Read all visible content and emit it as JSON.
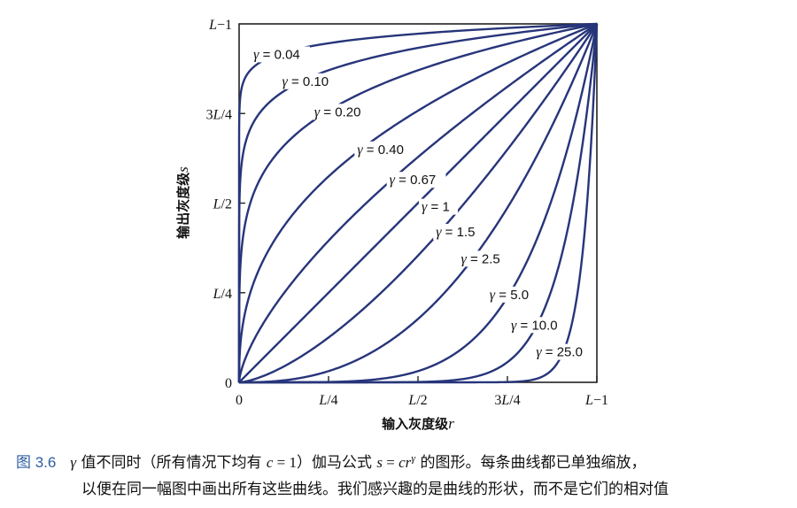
{
  "chart_data": {
    "type": "line",
    "function": "s = r^γ",
    "xlabel": "输入灰度级",
    "xlabel_var": "r",
    "ylabel": "输出灰度级",
    "ylabel_var": "s",
    "xlim": [
      0,
      1
    ],
    "ylim": [
      0,
      1
    ],
    "grid": false,
    "x_ticks": [
      {
        "value": 0,
        "label": "0"
      },
      {
        "value": 0.25,
        "label": "L/4"
      },
      {
        "value": 0.5,
        "label": "L/2"
      },
      {
        "value": 0.75,
        "label": "3L/4"
      },
      {
        "value": 1,
        "label": "L−1"
      }
    ],
    "y_ticks": [
      {
        "value": 0,
        "label": "0"
      },
      {
        "value": 0.25,
        "label": "L/4"
      },
      {
        "value": 0.5,
        "label": "L/2"
      },
      {
        "value": 0.75,
        "label": "3L/4"
      },
      {
        "value": 1,
        "label": "L−1"
      }
    ],
    "series": [
      {
        "gamma": 0.04,
        "label": "γ = 0.04"
      },
      {
        "gamma": 0.1,
        "label": "γ = 0.10"
      },
      {
        "gamma": 0.2,
        "label": "γ = 0.20"
      },
      {
        "gamma": 0.4,
        "label": "γ = 0.40"
      },
      {
        "gamma": 0.67,
        "label": "γ = 0.67"
      },
      {
        "gamma": 1,
        "label": "γ = 1"
      },
      {
        "gamma": 1.5,
        "label": "γ = 1.5"
      },
      {
        "gamma": 2.5,
        "label": "γ = 2.5"
      },
      {
        "gamma": 5.0,
        "label": "γ = 5.0"
      },
      {
        "gamma": 10.0,
        "label": "γ = 10.0"
      },
      {
        "gamma": 25.0,
        "label": "γ = 25.0"
      }
    ],
    "label_positions": [
      {
        "x": 0.04,
        "y": 0.905
      },
      {
        "x": 0.12,
        "y": 0.83
      },
      {
        "x": 0.21,
        "y": 0.745
      },
      {
        "x": 0.33,
        "y": 0.64
      },
      {
        "x": 0.42,
        "y": 0.555
      },
      {
        "x": 0.51,
        "y": 0.48
      },
      {
        "x": 0.55,
        "y": 0.41
      },
      {
        "x": 0.62,
        "y": 0.335
      },
      {
        "x": 0.7,
        "y": 0.235
      },
      {
        "x": 0.76,
        "y": 0.15
      },
      {
        "x": 0.83,
        "y": 0.075
      }
    ]
  },
  "caption": {
    "figure_number": "图 3.6",
    "gamma_symbol": "γ",
    "text_part1": " 值不同时（所有情况下均有 ",
    "formula_c": "c",
    "equals_one": " = 1",
    "text_part2": "）伽马公式 ",
    "formula_s": "s",
    "formula_eq": " = ",
    "formula_cr": "cr",
    "formula_exp": "γ",
    "text_part3": " 的图形。每条曲线都已单独缩放，",
    "line2": "以便在同一幅图中画出所有这些曲线。我们感兴趣的是曲线的形状，而不是它们的相对值"
  }
}
